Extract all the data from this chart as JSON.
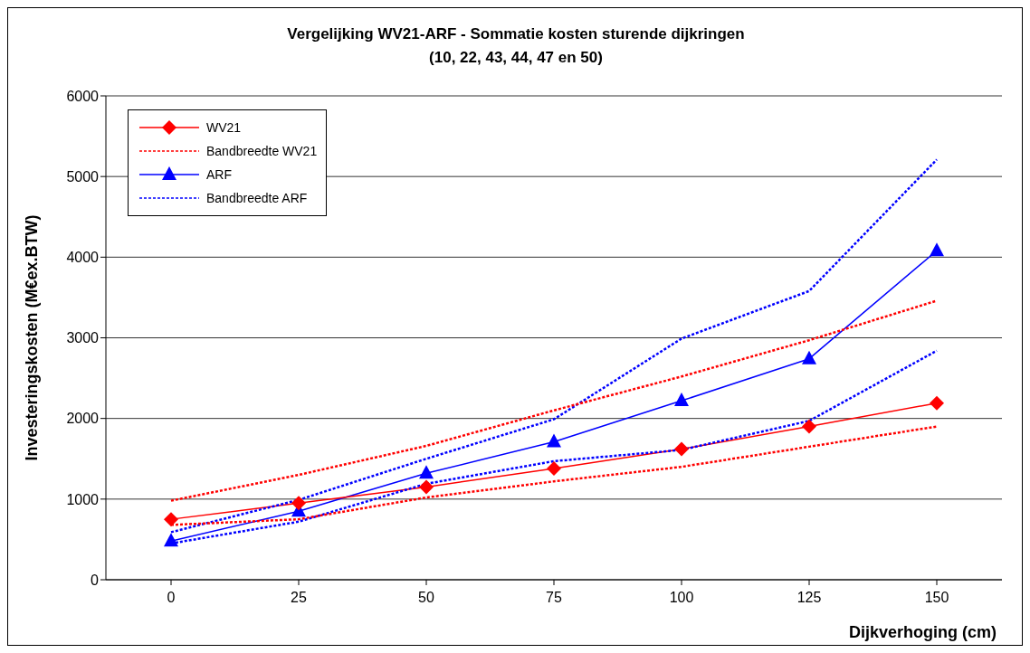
{
  "chart_data": {
    "type": "line",
    "title": "Vergelijking WV21-ARF  -  Sommatie kosten sturende dijkringen",
    "subtitle": "(10, 22, 43, 44, 47 en 50)",
    "xlabel": "Dijkverhoging (cm)",
    "ylabel": "Investeringskosten (M€ex.BTW)",
    "categories": [
      "0",
      "25",
      "50",
      "75",
      "100",
      "125",
      "150"
    ],
    "series": [
      {
        "name": "WV21",
        "color": "#ff0000",
        "marker": "diamond",
        "line_style": "solid",
        "values": [
          750,
          950,
          1150,
          1380,
          1620,
          1900,
          2190
        ]
      },
      {
        "name": "Bandbreedte WV21",
        "color": "#ff0000",
        "marker": "none",
        "line_style": "dotted",
        "values": [
          980,
          1300,
          1660,
          2100,
          2520,
          2970,
          3460
        ]
      },
      {
        "color": "#ff0000",
        "marker": "none",
        "line_style": "dotted",
        "values": [
          680,
          750,
          1020,
          1220,
          1400,
          1650,
          1900
        ]
      },
      {
        "name": "ARF",
        "color": "#0000ff",
        "marker": "triangle",
        "line_style": "solid",
        "values": [
          480,
          850,
          1320,
          1710,
          2220,
          2740,
          4080
        ]
      },
      {
        "name": "Bandbreedte ARF",
        "color": "#0000ff",
        "marker": "none",
        "line_style": "dotted",
        "values": [
          590,
          990,
          1500,
          1990,
          2990,
          3580,
          5210
        ]
      },
      {
        "color": "#0000ff",
        "marker": "none",
        "line_style": "dotted",
        "values": [
          450,
          720,
          1190,
          1470,
          1610,
          1970,
          2840
        ]
      }
    ],
    "ylim": [
      0,
      6000
    ],
    "yticks": [
      0,
      1000,
      2000,
      3000,
      4000,
      5000,
      6000
    ],
    "grid": "y",
    "legend": "top left"
  }
}
